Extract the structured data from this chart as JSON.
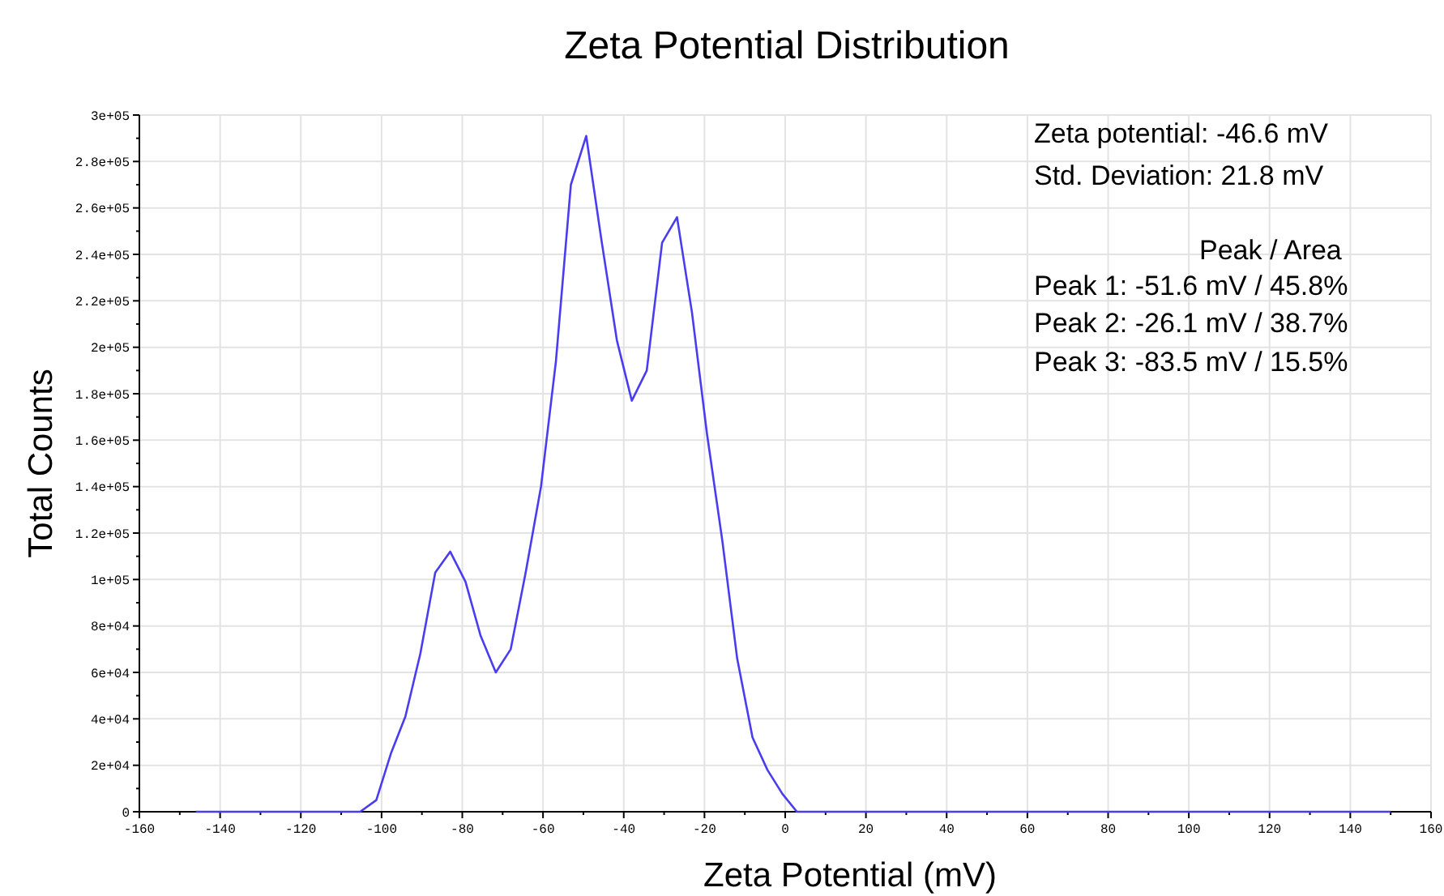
{
  "chart_data": {
    "type": "line",
    "title": "Zeta Potential Distribution",
    "xlabel": "Zeta Potential (mV)",
    "ylabel": "Total Counts",
    "x": [
      -146,
      -105.3,
      -101.3,
      -97.7,
      -94.1,
      -90.4,
      -86.7,
      -83,
      -79.2,
      -75.5,
      -71.7,
      -68,
      -64.3,
      -60.5,
      -56.8,
      -53.1,
      -49.3,
      -45.6,
      -41.7,
      -38,
      -34.3,
      -30.5,
      -26.8,
      -23.1,
      -19.4,
      -15.6,
      -11.9,
      -8.1,
      -4.4,
      -0.7,
      2.9,
      150
    ],
    "series": [
      {
        "color": "#4a3cf0",
        "values": [
          0,
          0,
          5000,
          25000,
          41000,
          68000,
          103000,
          112000,
          99000,
          76000,
          60000,
          70000,
          103000,
          140000,
          194000,
          270000,
          291000,
          247000,
          203000,
          177000,
          190000,
          245000,
          256000,
          215000,
          163000,
          117000,
          66000,
          32000,
          18000,
          7700,
          0,
          0
        ]
      }
    ],
    "xlim": [
      -160,
      160
    ],
    "xticks": [
      -160,
      {
        "value": -150,
        "label": null
      },
      -140,
      {
        "value": -130,
        "label": null
      },
      -120,
      {
        "value": -110,
        "label": null
      },
      -100,
      {
        "value": -90,
        "label": null
      },
      -80,
      {
        "value": -70,
        "label": null
      },
      -60,
      {
        "value": -50,
        "label": null
      },
      -40,
      {
        "value": -30,
        "label": null
      },
      -20,
      {
        "value": -10,
        "label": null
      },
      0,
      {
        "value": 10,
        "label": null
      },
      20,
      {
        "value": 30,
        "label": null
      },
      40,
      {
        "value": 50,
        "label": null
      },
      60,
      {
        "value": 70,
        "label": null
      },
      80,
      {
        "value": 90,
        "label": null
      },
      100,
      {
        "value": 110,
        "label": null
      },
      120,
      {
        "value": 130,
        "label": null
      },
      140,
      {
        "value": 150,
        "label": null
      },
      160
    ],
    "ylim": [
      0,
      300000
    ],
    "yticks": [
      0,
      {
        "value": 10000,
        "label": null
      },
      {
        "value": 20000,
        "label": "2e+04"
      },
      {
        "value": 30000,
        "label": null
      },
      {
        "value": 40000,
        "label": "4e+04"
      },
      {
        "value": 50000,
        "label": null
      },
      {
        "value": 60000,
        "label": "6e+04"
      },
      {
        "value": 70000,
        "label": null
      },
      {
        "value": 80000,
        "label": "8e+04"
      },
      {
        "value": 90000,
        "label": null
      },
      {
        "value": 100000,
        "label": "1e+05"
      },
      {
        "value": 110000,
        "label": null
      },
      {
        "value": 120000,
        "label": "1.2e+05"
      },
      {
        "value": 130000,
        "label": null
      },
      {
        "value": 140000,
        "label": "1.4e+05"
      },
      {
        "value": 150000,
        "label": null
      },
      {
        "value": 160000,
        "label": "1.6e+05"
      },
      {
        "value": 170000,
        "label": null
      },
      {
        "value": 180000,
        "label": "1.8e+05"
      },
      {
        "value": 190000,
        "label": null
      },
      {
        "value": 200000,
        "label": "2e+05"
      },
      {
        "value": 210000,
        "label": null
      },
      {
        "value": 220000,
        "label": "2.2e+05"
      },
      {
        "value": 230000,
        "label": null
      },
      {
        "value": 240000,
        "label": "2.4e+05"
      },
      {
        "value": 250000,
        "label": null
      },
      {
        "value": 260000,
        "label": "2.6e+05"
      },
      {
        "value": 270000,
        "label": null
      },
      {
        "value": 280000,
        "label": "2.8e+05"
      },
      {
        "value": 290000,
        "label": null
      },
      {
        "value": 300000,
        "label": "3e+05"
      }
    ],
    "grid": true,
    "marker": "none",
    "line_style": "solid",
    "annotations": [
      "Zeta potential:  -46.6 mV",
      "Std. Deviation:  21.8 mV",
      "Peak / Area",
      "Peak 1:  -51.6 mV / 45.8%",
      "Peak 2:  -26.1 mV / 38.7%",
      "Peak 3:  -83.5 mV / 15.5%"
    ]
  }
}
